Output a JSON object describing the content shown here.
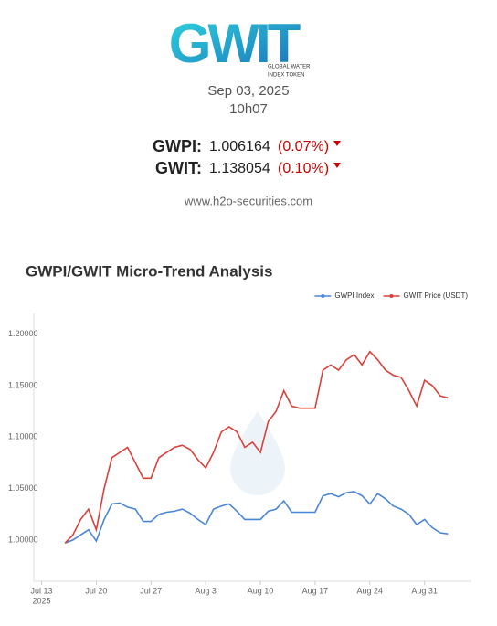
{
  "header": {
    "logo_text": "GWIT",
    "logo_subtitle": [
      "GLOBAL WATER",
      "INDEX TOKEN"
    ],
    "date": "Sep 03, 2025",
    "time": "10h07"
  },
  "quotes": [
    {
      "symbol": "GWPI:",
      "value": 1.006164,
      "change": "(0.07%)"
    },
    {
      "symbol": "GWIT:",
      "value": 1.138054,
      "change": "(0.10%)"
    }
  ],
  "website": "www.h2o-securities.com",
  "chart_data": {
    "type": "line",
    "title": "GWPI/GWIT Micro-Trend Analysis",
    "x": [
      "2025-07-16",
      "2025-07-17",
      "2025-07-18",
      "2025-07-19",
      "2025-07-20",
      "2025-07-21",
      "2025-07-22",
      "2025-07-23",
      "2025-07-24",
      "2025-07-25",
      "2025-07-26",
      "2025-07-27",
      "2025-07-28",
      "2025-07-29",
      "2025-07-30",
      "2025-07-31",
      "2025-08-01",
      "2025-08-02",
      "2025-08-03",
      "2025-08-04",
      "2025-08-05",
      "2025-08-06",
      "2025-08-07",
      "2025-08-08",
      "2025-08-09",
      "2025-08-10",
      "2025-08-11",
      "2025-08-12",
      "2025-08-13",
      "2025-08-14",
      "2025-08-15",
      "2025-08-16",
      "2025-08-17",
      "2025-08-18",
      "2025-08-19",
      "2025-08-20",
      "2025-08-21",
      "2025-08-22",
      "2025-08-23",
      "2025-08-24",
      "2025-08-25",
      "2025-08-26",
      "2025-08-27",
      "2025-08-28",
      "2025-08-29",
      "2025-08-30",
      "2025-08-31",
      "2025-09-01",
      "2025-09-02",
      "2025-09-03"
    ],
    "series": [
      {
        "name": "GWPI Index",
        "color": "#4a86d8",
        "values": [
          0.997,
          1.0,
          1.005,
          1.01,
          0.999,
          1.02,
          1.035,
          1.036,
          1.032,
          1.03,
          1.018,
          1.018,
          1.025,
          1.027,
          1.028,
          1.03,
          1.026,
          1.02,
          1.015,
          1.03,
          1.033,
          1.035,
          1.028,
          1.02,
          1.02,
          1.02,
          1.028,
          1.03,
          1.038,
          1.027,
          1.027,
          1.027,
          1.027,
          1.043,
          1.045,
          1.042,
          1.046,
          1.047,
          1.043,
          1.035,
          1.045,
          1.04,
          1.033,
          1.03,
          1.025,
          1.015,
          1.02,
          1.012,
          1.007,
          1.006
        ]
      },
      {
        "name": "GWIT Price (USDT)",
        "color": "#d9413a",
        "values": [
          0.997,
          1.005,
          1.02,
          1.03,
          1.01,
          1.05,
          1.08,
          1.085,
          1.09,
          1.075,
          1.06,
          1.06,
          1.08,
          1.085,
          1.09,
          1.092,
          1.088,
          1.078,
          1.07,
          1.085,
          1.105,
          1.11,
          1.105,
          1.09,
          1.095,
          1.085,
          1.115,
          1.125,
          1.145,
          1.13,
          1.128,
          1.128,
          1.128,
          1.165,
          1.17,
          1.165,
          1.175,
          1.18,
          1.17,
          1.183,
          1.175,
          1.165,
          1.16,
          1.158,
          1.145,
          1.13,
          1.155,
          1.15,
          1.14,
          1.138
        ]
      }
    ],
    "xlim": [
      "2025-07-12",
      "2025-09-06"
    ],
    "xticks": [
      {
        "value": "2025-07-13",
        "label": "Jul 13"
      },
      {
        "value": "2025-07-20",
        "label": "Jul 20"
      },
      {
        "value": "2025-07-27",
        "label": "Jul 27"
      },
      {
        "value": "2025-08-03",
        "label": "Aug 3"
      },
      {
        "value": "2025-08-10",
        "label": "Aug 10"
      },
      {
        "value": "2025-08-17",
        "label": "Aug 17"
      },
      {
        "value": "2025-08-24",
        "label": "Aug 24"
      },
      {
        "value": "2025-08-31",
        "label": "Aug 31"
      }
    ],
    "x_year_label": "2025",
    "ylim": [
      0.96,
      1.22
    ],
    "yticks": [
      {
        "value": 1.0,
        "label": "1.00000"
      },
      {
        "value": 1.05,
        "label": "1.05000"
      },
      {
        "value": 1.1,
        "label": "1.10000"
      },
      {
        "value": 1.15,
        "label": "1.15000"
      },
      {
        "value": 1.2,
        "label": "1.20000"
      }
    ],
    "legend": "top-right"
  }
}
